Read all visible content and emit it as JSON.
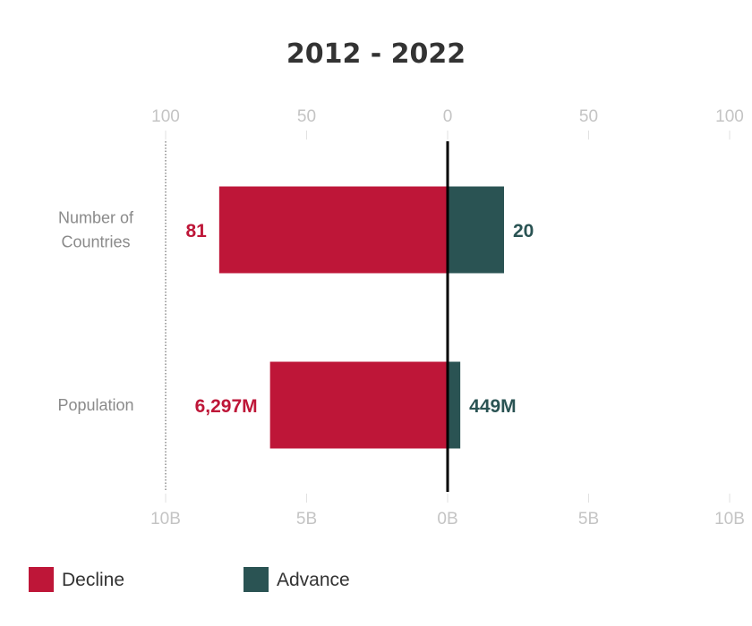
{
  "chart_data": {
    "type": "bar",
    "orientation": "horizontal-diverging",
    "title": "2012 - 2022",
    "categories": [
      "Number of\nCountries",
      "Population"
    ],
    "series": [
      {
        "name": "Decline",
        "color": "#be1638",
        "direction": "left",
        "values": [
          81,
          6297
        ],
        "labels": [
          "81",
          "6,297M"
        ]
      },
      {
        "name": "Advance",
        "color": "#2a5353",
        "direction": "right",
        "values": [
          20,
          449
        ],
        "labels": [
          "20",
          "449M"
        ]
      }
    ],
    "axes": [
      {
        "position": "top",
        "applies_to": "Number of Countries",
        "range": [
          -100,
          100
        ],
        "ticks": [
          {
            "value": -100,
            "label": "100"
          },
          {
            "value": -50,
            "label": "50"
          },
          {
            "value": 0,
            "label": "0"
          },
          {
            "value": 50,
            "label": "50"
          },
          {
            "value": 100,
            "label": "100"
          }
        ]
      },
      {
        "position": "bottom",
        "applies_to": "Population",
        "unit": "M",
        "range": [
          -10000,
          10000
        ],
        "ticks": [
          {
            "value": -10000,
            "label": "10B"
          },
          {
            "value": -5000,
            "label": "5B"
          },
          {
            "value": 0,
            "label": "0B"
          },
          {
            "value": 5000,
            "label": "5B"
          },
          {
            "value": 10000,
            "label": "10B"
          }
        ]
      }
    ],
    "legend": {
      "placement": "bottom-left"
    },
    "grid": false
  }
}
